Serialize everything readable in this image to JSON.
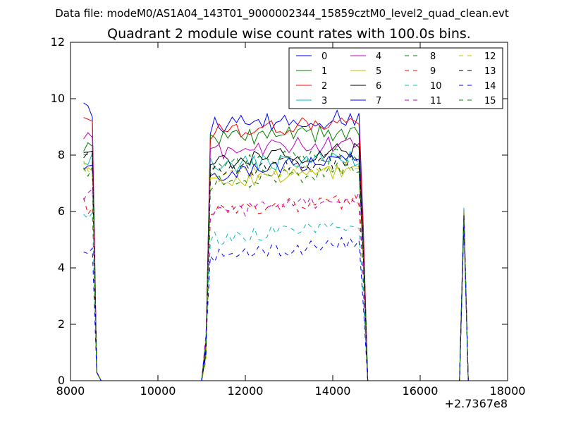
{
  "figure": {
    "supertitle": "Data file: modeM0/AS1A04_143T01_9000002344_15859cztM0_level2_quad_clean.evt",
    "title": "Quadrant 2 module wise count rates with 100.0s bins.",
    "x_offset_label": "+2.7367e8"
  },
  "chart_data": {
    "type": "line",
    "title": "Quadrant 2 module wise count rates with 100.0s bins.",
    "xlabel": "",
    "ylabel": "",
    "xlim": [
      8000,
      18000
    ],
    "ylim": [
      0,
      12
    ],
    "x_offset": 273670000,
    "xticks": [
      8000,
      10000,
      12000,
      14000,
      16000,
      18000
    ],
    "yticks": [
      0,
      2,
      4,
      6,
      8,
      10,
      12
    ],
    "xtick_labels": [
      "8000",
      "10000",
      "12000",
      "14000",
      "16000",
      "18000"
    ],
    "ytick_labels": [
      "0",
      "2",
      "4",
      "6",
      "8",
      "10",
      "12"
    ],
    "grid": false,
    "legend_position": "top-right",
    "legend_columns": 4,
    "series": [
      {
        "name": "0",
        "color": "#0000ff",
        "dash": "solid",
        "base": 9.0,
        "first": 9.6,
        "amp": 0.35,
        "rise": 0.3
      },
      {
        "name": "1",
        "color": "#008000",
        "dash": "solid",
        "base": 8.6,
        "first": 8.4,
        "amp": 0.3,
        "rise": 0.2
      },
      {
        "name": "2",
        "color": "#ff0000",
        "dash": "solid",
        "base": 8.8,
        "first": 9.3,
        "amp": 0.3,
        "rise": 0.4
      },
      {
        "name": "3",
        "color": "#00bfbf",
        "dash": "solid",
        "base": 7.6,
        "first": 7.8,
        "amp": 0.3,
        "rise": 0.3
      },
      {
        "name": "4",
        "color": "#bf00bf",
        "dash": "solid",
        "base": 8.1,
        "first": 8.6,
        "amp": 0.3,
        "rise": 0.4
      },
      {
        "name": "5",
        "color": "#bfbf00",
        "dash": "solid",
        "base": 7.0,
        "first": 7.4,
        "amp": 0.25,
        "rise": 0.5
      },
      {
        "name": "6",
        "color": "#000000",
        "dash": "solid",
        "base": 7.7,
        "first": 8.1,
        "amp": 0.3,
        "rise": 0.5
      },
      {
        "name": "7",
        "color": "#0000ff",
        "dash": "solid",
        "base": 7.3,
        "first": 7.6,
        "amp": 0.3,
        "rise": 0.6
      },
      {
        "name": "8",
        "color": "#008000",
        "dash": "dashed",
        "base": 7.7,
        "first": 8.0,
        "amp": 0.3,
        "rise": 0.3
      },
      {
        "name": "9",
        "color": "#ff0000",
        "dash": "dashed",
        "base": 6.0,
        "first": 6.2,
        "amp": 0.25,
        "rise": 0.4
      },
      {
        "name": "10",
        "color": "#00bfbf",
        "dash": "dashed",
        "base": 5.0,
        "first": 5.7,
        "amp": 0.25,
        "rise": 0.6
      },
      {
        "name": "11",
        "color": "#bf00bf",
        "dash": "dashed",
        "base": 5.9,
        "first": 6.6,
        "amp": 0.25,
        "rise": 0.6
      },
      {
        "name": "12",
        "color": "#bfbf00",
        "dash": "dashed",
        "base": 7.2,
        "first": 7.5,
        "amp": 0.25,
        "rise": 0.4
      },
      {
        "name": "13",
        "color": "#000000",
        "dash": "dashed",
        "base": 7.4,
        "first": 7.9,
        "amp": 0.3,
        "rise": 0.5
      },
      {
        "name": "14",
        "color": "#0000ff",
        "dash": "dashed",
        "base": 4.4,
        "first": 4.6,
        "amp": 0.25,
        "rise": 0.5
      },
      {
        "name": "15",
        "color": "#008000",
        "dash": "dashed",
        "base": 7.0,
        "first": 7.3,
        "amp": 0.3,
        "rise": 0.5
      }
    ],
    "segments": [
      {
        "x_start": 8300,
        "x_end": 8600
      },
      {
        "x_start": 11100,
        "x_end": 14700
      },
      {
        "x_start": 16950,
        "x_end": 17050
      }
    ],
    "bin_width": 100,
    "gap_value": 0
  }
}
